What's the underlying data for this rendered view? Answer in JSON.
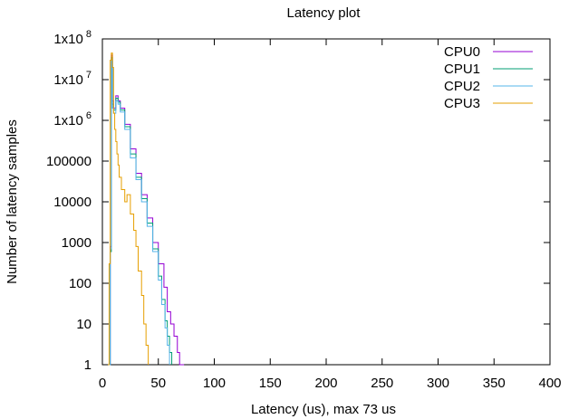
{
  "chart_data": {
    "type": "line",
    "title": "Latency plot",
    "xlabel": "Latency (us), max 73 us",
    "ylabel": "Number of latency samples",
    "xlim": [
      0,
      400
    ],
    "ylim": [
      1,
      100000000
    ],
    "yscale": "log",
    "grid": false,
    "legend_position": "top-right",
    "x_ticks": [
      0,
      50,
      100,
      150,
      200,
      250,
      300,
      350,
      400
    ],
    "y_ticks": [
      {
        "value": 1,
        "label": "1",
        "exp": ""
      },
      {
        "value": 10,
        "label": "10",
        "exp": ""
      },
      {
        "value": 100,
        "label": "100",
        "exp": ""
      },
      {
        "value": 1000,
        "label": "1000",
        "exp": ""
      },
      {
        "value": 10000,
        "label": "10000",
        "exp": ""
      },
      {
        "value": 100000,
        "label": "100000",
        "exp": ""
      },
      {
        "value": 1000000,
        "label": "1x10",
        "exp": "6"
      },
      {
        "value": 10000000,
        "label": "1x10",
        "exp": "7"
      },
      {
        "value": 100000000,
        "label": "1x10",
        "exp": "8"
      }
    ],
    "series": [
      {
        "name": "CPU0",
        "color": "#9400d3",
        "points": [
          [
            6,
            1
          ],
          [
            7,
            800
          ],
          [
            8,
            40000000
          ],
          [
            9,
            3000000
          ],
          [
            10,
            2000000
          ],
          [
            12,
            4000000
          ],
          [
            14,
            3000000
          ],
          [
            16,
            2000000
          ],
          [
            20,
            800000
          ],
          [
            25,
            200000
          ],
          [
            30,
            50000
          ],
          [
            35,
            15000
          ],
          [
            40,
            4000
          ],
          [
            45,
            1000
          ],
          [
            50,
            300
          ],
          [
            55,
            80
          ],
          [
            58,
            20
          ],
          [
            61,
            10
          ],
          [
            64,
            5
          ],
          [
            67,
            2
          ],
          [
            69,
            1
          ],
          [
            71,
            1
          ],
          [
            73,
            1
          ]
        ]
      },
      {
        "name": "CPU1",
        "color": "#009e73",
        "points": [
          [
            6,
            1
          ],
          [
            7,
            600
          ],
          [
            8,
            35000000
          ],
          [
            9,
            2500000
          ],
          [
            10,
            1800000
          ],
          [
            12,
            3500000
          ],
          [
            14,
            2800000
          ],
          [
            16,
            1800000
          ],
          [
            20,
            700000
          ],
          [
            25,
            150000
          ],
          [
            30,
            40000
          ],
          [
            35,
            12000
          ],
          [
            40,
            3000
          ],
          [
            45,
            700
          ],
          [
            50,
            150
          ],
          [
            53,
            40
          ],
          [
            56,
            12
          ],
          [
            58,
            5
          ],
          [
            60,
            2
          ],
          [
            62,
            1
          ]
        ]
      },
      {
        "name": "CPU2",
        "color": "#56b4e9",
        "points": [
          [
            6,
            1
          ],
          [
            7,
            700
          ],
          [
            8,
            30000000
          ],
          [
            9,
            2000000
          ],
          [
            10,
            1500000
          ],
          [
            12,
            3000000
          ],
          [
            14,
            2500000
          ],
          [
            16,
            1600000
          ],
          [
            20,
            600000
          ],
          [
            25,
            120000
          ],
          [
            30,
            35000
          ],
          [
            35,
            10000
          ],
          [
            40,
            2500
          ],
          [
            45,
            600
          ],
          [
            50,
            120
          ],
          [
            53,
            30
          ],
          [
            56,
            8
          ],
          [
            58,
            3
          ],
          [
            60,
            1
          ]
        ]
      },
      {
        "name": "CPU3",
        "color": "#e69f00",
        "points": [
          [
            5,
            1
          ],
          [
            6,
            300
          ],
          [
            7,
            30000000
          ],
          [
            8,
            45000000
          ],
          [
            9,
            20000000
          ],
          [
            10,
            1500000
          ],
          [
            11,
            600000
          ],
          [
            12,
            300000
          ],
          [
            13,
            150000
          ],
          [
            14,
            80000
          ],
          [
            15,
            40000
          ],
          [
            17,
            20000
          ],
          [
            20,
            10000
          ],
          [
            22,
            15000
          ],
          [
            25,
            5000
          ],
          [
            28,
            2000
          ],
          [
            30,
            800
          ],
          [
            32,
            200
          ],
          [
            35,
            50
          ],
          [
            37,
            10
          ],
          [
            39,
            3
          ],
          [
            41,
            1
          ]
        ]
      }
    ]
  }
}
